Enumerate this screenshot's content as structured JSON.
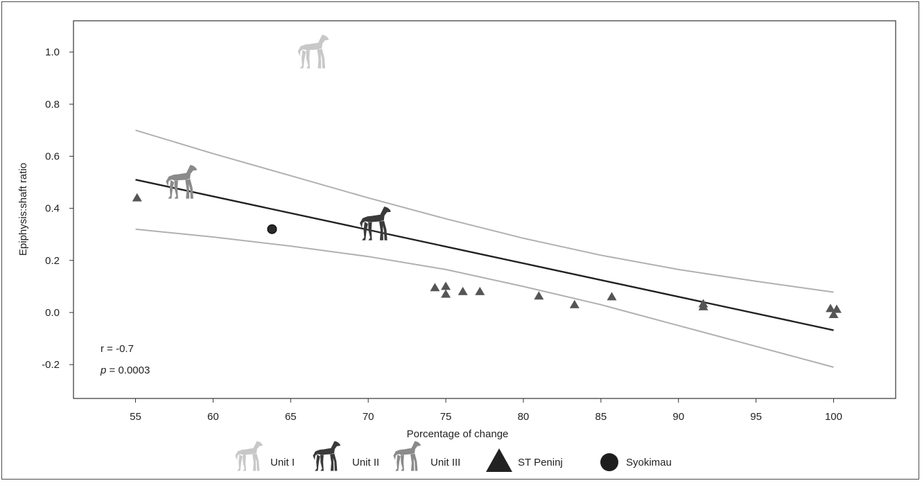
{
  "chart_data": {
    "type": "scatter",
    "xlabel": "Porcentage of change",
    "ylabel": "Epiphysis:shaft ratio",
    "xlim": [
      51,
      104
    ],
    "ylim": [
      -0.33,
      1.12
    ],
    "x_ticks": [
      55,
      60,
      65,
      70,
      75,
      80,
      85,
      90,
      95,
      100
    ],
    "y_ticks": [
      -0.2,
      0.0,
      0.2,
      0.4,
      0.6,
      0.8,
      1.0
    ],
    "y_tick_labels": [
      "-0.2",
      "0.0",
      "0.2",
      "0.4",
      "0.6",
      "0.8",
      "1.0"
    ],
    "grid": false,
    "legend_position": "bottom",
    "series": [
      {
        "name": "Unit I",
        "marker": "horse",
        "color": "#c8c8c8",
        "points": [
          {
            "x": 66.5,
            "y": 0.99
          }
        ]
      },
      {
        "name": "Unit II",
        "marker": "horse",
        "color": "#3a3a3a",
        "points": [
          {
            "x": 70.5,
            "y": 0.33
          }
        ]
      },
      {
        "name": "Unit III",
        "marker": "horse",
        "color": "#8a8a8a",
        "points": [
          {
            "x": 58.0,
            "y": 0.49
          }
        ]
      },
      {
        "name": "ST Peninj",
        "marker": "triangle",
        "color": "#555555",
        "points": [
          {
            "x": 55.1,
            "y": 0.44
          },
          {
            "x": 74.3,
            "y": 0.095
          },
          {
            "x": 75.0,
            "y": 0.1
          },
          {
            "x": 75.0,
            "y": 0.07
          },
          {
            "x": 76.1,
            "y": 0.08
          },
          {
            "x": 77.2,
            "y": 0.08
          },
          {
            "x": 81.0,
            "y": 0.063
          },
          {
            "x": 83.3,
            "y": 0.03
          },
          {
            "x": 85.7,
            "y": 0.06
          },
          {
            "x": 91.6,
            "y": 0.033
          },
          {
            "x": 91.6,
            "y": 0.022
          },
          {
            "x": 99.8,
            "y": 0.015
          },
          {
            "x": 100.2,
            "y": 0.012
          },
          {
            "x": 100.0,
            "y": -0.008
          }
        ]
      },
      {
        "name": "Syokimau",
        "marker": "circle",
        "color": "#2a2a2a",
        "points": [
          {
            "x": 63.8,
            "y": 0.32
          }
        ]
      }
    ],
    "regression": {
      "color": "#222222",
      "points": [
        {
          "x": 55,
          "y": 0.51
        },
        {
          "x": 100,
          "y": -0.068
        }
      ]
    },
    "confidence_band": {
      "color": "#b0b0b0",
      "upper": [
        {
          "x": 55,
          "y": 0.7
        },
        {
          "x": 60,
          "y": 0.61
        },
        {
          "x": 65,
          "y": 0.525
        },
        {
          "x": 70,
          "y": 0.44
        },
        {
          "x": 75,
          "y": 0.36
        },
        {
          "x": 80,
          "y": 0.285
        },
        {
          "x": 85,
          "y": 0.22
        },
        {
          "x": 90,
          "y": 0.165
        },
        {
          "x": 95,
          "y": 0.12
        },
        {
          "x": 100,
          "y": 0.078
        }
      ],
      "lower": [
        {
          "x": 55,
          "y": 0.32
        },
        {
          "x": 60,
          "y": 0.29
        },
        {
          "x": 65,
          "y": 0.255
        },
        {
          "x": 70,
          "y": 0.215
        },
        {
          "x": 75,
          "y": 0.165
        },
        {
          "x": 80,
          "y": 0.1
        },
        {
          "x": 85,
          "y": 0.03
        },
        {
          "x": 90,
          "y": -0.05
        },
        {
          "x": 95,
          "y": -0.13
        },
        {
          "x": 100,
          "y": -0.21
        }
      ]
    },
    "annotations": {
      "r_text": "r = -0.7",
      "p_symbol": "p",
      "p_value": " = 0.0003"
    }
  }
}
